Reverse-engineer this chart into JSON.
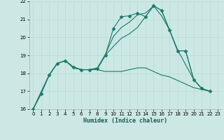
{
  "xlabel": "Humidex (Indice chaleur)",
  "background_color": "#cce8e4",
  "grid_color": "#c0ddd8",
  "line_color": "#1a7a6e",
  "xlim": [
    -0.5,
    23.5
  ],
  "ylim": [
    16,
    22
  ],
  "xticks": [
    0,
    1,
    2,
    3,
    4,
    5,
    6,
    7,
    8,
    9,
    10,
    11,
    12,
    13,
    14,
    15,
    16,
    17,
    18,
    19,
    20,
    21,
    22,
    23
  ],
  "yticks": [
    16,
    17,
    18,
    19,
    20,
    21,
    22
  ],
  "series": [
    {
      "x": [
        0,
        1,
        2,
        3,
        4,
        5,
        6,
        7,
        8,
        9,
        10,
        11,
        12,
        13,
        14,
        15,
        16,
        17,
        18,
        19,
        20,
        21,
        22
      ],
      "y": [
        16.0,
        16.85,
        17.9,
        18.55,
        18.7,
        18.35,
        18.2,
        18.2,
        18.25,
        19.0,
        20.5,
        21.15,
        21.2,
        21.35,
        21.15,
        21.75,
        21.5,
        20.4,
        19.25,
        19.25,
        17.65,
        17.15,
        17.0
      ],
      "marker": "D",
      "markersize": 2.5
    },
    {
      "x": [
        0,
        2,
        3,
        4,
        5,
        6,
        7,
        8,
        9,
        10,
        11,
        12,
        13,
        14,
        15,
        16,
        17,
        18,
        19,
        20,
        21,
        22
      ],
      "y": [
        16.0,
        17.9,
        18.55,
        18.7,
        18.35,
        18.2,
        18.2,
        18.3,
        19.05,
        20.05,
        20.55,
        20.85,
        21.25,
        21.35,
        21.75,
        21.5,
        20.4,
        19.25,
        19.25,
        17.65,
        17.15,
        17.0
      ],
      "marker": null,
      "markersize": 0
    },
    {
      "x": [
        0,
        2,
        3,
        4,
        5,
        6,
        7,
        8,
        9,
        10,
        11,
        12,
        13,
        14,
        15,
        16,
        17,
        18,
        20,
        21,
        22
      ],
      "y": [
        16.0,
        17.9,
        18.55,
        18.7,
        18.35,
        18.2,
        18.2,
        18.25,
        19.0,
        19.5,
        19.95,
        20.2,
        20.55,
        21.15,
        21.75,
        21.2,
        20.4,
        19.3,
        17.65,
        17.15,
        17.0
      ],
      "marker": null,
      "markersize": 0
    },
    {
      "x": [
        0,
        2,
        3,
        4,
        5,
        6,
        7,
        8,
        9,
        10,
        11,
        12,
        13,
        14,
        15,
        16,
        17,
        18,
        19,
        20,
        21,
        22
      ],
      "y": [
        16.0,
        17.9,
        18.55,
        18.7,
        18.3,
        18.2,
        18.2,
        18.2,
        18.1,
        18.1,
        18.1,
        18.2,
        18.3,
        18.3,
        18.1,
        17.9,
        17.8,
        17.6,
        17.4,
        17.2,
        17.1,
        17.0
      ],
      "marker": null,
      "markersize": 0
    }
  ]
}
